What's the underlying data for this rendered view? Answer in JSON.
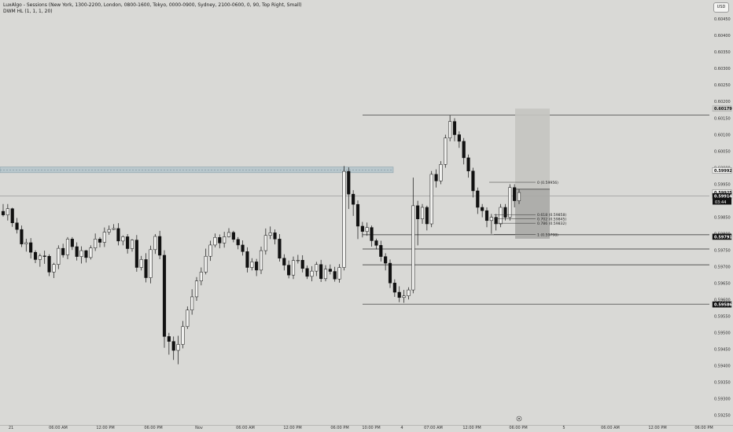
{
  "legend": {
    "line1": "LuxAlgo - Sessions (New York, 1300-2200, London, 0800-1600, Tokyo, 0000-0900, Sydney, 2100-0600, 0, 90, Top Right, Small)",
    "line2": "DWM HL (1, 1, 1, 20)"
  },
  "currency": "USD",
  "countdown": "03:44",
  "chart_data": {
    "type": "candlestick",
    "title": "",
    "y_range": [
      0.5925,
      0.6047
    ],
    "y_ticks": [
      "0.60450",
      "0.60400",
      "0.60350",
      "0.60300",
      "0.60250",
      "0.60200",
      "0.60150",
      "0.60100",
      "0.60050",
      "0.60000",
      "0.59950",
      "0.59900",
      "0.59850",
      "0.59800",
      "0.59750",
      "0.59700",
      "0.59650",
      "0.59600",
      "0.59550",
      "0.59500",
      "0.59450",
      "0.59400",
      "0.59350",
      "0.59300",
      "0.59250"
    ],
    "x_ticks": [
      "21",
      "06:00 AM",
      "12:00 PM",
      "06:00 PM",
      "Nov",
      "06:00 AM",
      "12:00 PM",
      "06:00 PM",
      "10:00 PM",
      "4",
      "07:00 AM",
      "12:00 PM",
      "06:00 PM",
      "5",
      "06:00 AM",
      "12:00 PM",
      "06:00 PM"
    ],
    "price_levels": [
      {
        "label": "0.60179",
        "value": 0.60179,
        "style": "badge-grey"
      },
      {
        "label": "0.59992",
        "value": 0.59992,
        "style": "badge-white"
      },
      {
        "label": "0.59925",
        "value": 0.59925,
        "style": "badge-white"
      },
      {
        "label": "0.59914",
        "value": 0.59914,
        "style": "badge-black"
      },
      {
        "label": "0.59791",
        "value": 0.59791,
        "style": "badge-black"
      },
      {
        "label": "0.59586",
        "value": 0.59586,
        "style": "badge-black"
      }
    ],
    "fib_levels": [
      {
        "label": "0 (0.59956)",
        "value": 0.59956
      },
      {
        "label": "0.618 (0.59858)",
        "value": 0.59858
      },
      {
        "label": "0.702 (0.59845)",
        "value": 0.59845
      },
      {
        "label": "0.786 (0.59832)",
        "value": 0.59832
      },
      {
        "label": "1 (0.59798)",
        "value": 0.59798
      }
    ],
    "horizontal_lines": [
      0.60159,
      0.59797,
      0.59754,
      0.59706,
      0.59587
    ],
    "resistance_zone": [
      0.59985,
      0.60002
    ],
    "reference_line": 0.59914,
    "position_box": {
      "entry": 0.59935,
      "target": 0.60179,
      "stop": 0.59785
    },
    "candles": [
      [
        0.59868,
        0.59857,
        0.59852,
        0.5989
      ],
      [
        0.59857,
        0.59876,
        0.5984,
        0.5989
      ],
      [
        0.59876,
        0.59833,
        0.59821,
        0.59879
      ],
      [
        0.59833,
        0.59813,
        0.59801,
        0.59848
      ],
      [
        0.59813,
        0.59769,
        0.5976,
        0.59825
      ],
      [
        0.59769,
        0.59773,
        0.59746,
        0.59785
      ],
      [
        0.59773,
        0.59744,
        0.59725,
        0.59787
      ],
      [
        0.59744,
        0.59722,
        0.59711,
        0.5975
      ],
      [
        0.59722,
        0.59733,
        0.597,
        0.5974
      ],
      [
        0.59733,
        0.59732,
        0.59709,
        0.59749
      ],
      [
        0.59732,
        0.59684,
        0.59672,
        0.59738
      ],
      [
        0.59684,
        0.59707,
        0.59666,
        0.59712
      ],
      [
        0.59707,
        0.59756,
        0.59693,
        0.59765
      ],
      [
        0.59756,
        0.59736,
        0.59728,
        0.5977
      ],
      [
        0.59736,
        0.59784,
        0.59723,
        0.5979
      ],
      [
        0.59784,
        0.59761,
        0.59751,
        0.5979
      ],
      [
        0.59761,
        0.59731,
        0.59719,
        0.59774
      ],
      [
        0.59731,
        0.59749,
        0.5971,
        0.59762
      ],
      [
        0.59749,
        0.59728,
        0.59713,
        0.59751
      ],
      [
        0.59728,
        0.59757,
        0.59722,
        0.59765
      ],
      [
        0.59757,
        0.59784,
        0.59748,
        0.59801
      ],
      [
        0.59784,
        0.59774,
        0.59759,
        0.5979
      ],
      [
        0.59774,
        0.59805,
        0.5976,
        0.59819
      ],
      [
        0.59805,
        0.59813,
        0.59797,
        0.59825
      ],
      [
        0.59813,
        0.59816,
        0.59811,
        0.59829
      ],
      [
        0.59816,
        0.59778,
        0.59765,
        0.59832
      ],
      [
        0.59778,
        0.59791,
        0.59765,
        0.59795
      ],
      [
        0.59791,
        0.59755,
        0.5974,
        0.59799
      ],
      [
        0.59755,
        0.59781,
        0.59746,
        0.59784
      ],
      [
        0.59781,
        0.59698,
        0.59685,
        0.59796
      ],
      [
        0.59698,
        0.59722,
        0.59689,
        0.59733
      ],
      [
        0.59722,
        0.59667,
        0.59653,
        0.59741
      ],
      [
        0.59667,
        0.59752,
        0.5965,
        0.59764
      ],
      [
        0.59752,
        0.59792,
        0.59739,
        0.59799
      ],
      [
        0.59792,
        0.59735,
        0.59723,
        0.59809
      ],
      [
        0.59735,
        0.59489,
        0.59455,
        0.5975
      ],
      [
        0.59489,
        0.59474,
        0.59434,
        0.595
      ],
      [
        0.59474,
        0.59447,
        0.59418,
        0.59489
      ],
      [
        0.59447,
        0.59465,
        0.59405,
        0.59491
      ],
      [
        0.59465,
        0.59519,
        0.59453,
        0.59536
      ],
      [
        0.59519,
        0.59569,
        0.59512,
        0.5958
      ],
      [
        0.59569,
        0.59609,
        0.59555,
        0.59632
      ],
      [
        0.59609,
        0.59657,
        0.59597,
        0.59669
      ],
      [
        0.59657,
        0.59684,
        0.59644,
        0.59698
      ],
      [
        0.59684,
        0.59732,
        0.59677,
        0.59755
      ],
      [
        0.59732,
        0.59766,
        0.59718,
        0.59779
      ],
      [
        0.59766,
        0.59789,
        0.59759,
        0.59801
      ],
      [
        0.59789,
        0.59772,
        0.59756,
        0.59798
      ],
      [
        0.59772,
        0.59791,
        0.59758,
        0.59806
      ],
      [
        0.59791,
        0.59804,
        0.59789,
        0.59817
      ],
      [
        0.59804,
        0.59783,
        0.59774,
        0.59809
      ],
      [
        0.59783,
        0.59766,
        0.59753,
        0.5979
      ],
      [
        0.59766,
        0.59746,
        0.59734,
        0.5978
      ],
      [
        0.59746,
        0.59698,
        0.59683,
        0.59759
      ],
      [
        0.59698,
        0.59715,
        0.59689,
        0.59726
      ],
      [
        0.59715,
        0.5969,
        0.59672,
        0.59724
      ],
      [
        0.5969,
        0.59749,
        0.59678,
        0.59761
      ],
      [
        0.59749,
        0.59795,
        0.59737,
        0.59816
      ],
      [
        0.59795,
        0.59803,
        0.59784,
        0.59822
      ],
      [
        0.59803,
        0.59784,
        0.59768,
        0.59813
      ],
      [
        0.59784,
        0.59726,
        0.59716,
        0.59799
      ],
      [
        0.59726,
        0.59705,
        0.59689,
        0.59738
      ],
      [
        0.59705,
        0.59675,
        0.59665,
        0.59719
      ],
      [
        0.59675,
        0.59719,
        0.59663,
        0.59731
      ],
      [
        0.59719,
        0.5972,
        0.5971,
        0.59736
      ],
      [
        0.5972,
        0.59695,
        0.59683,
        0.59735
      ],
      [
        0.59695,
        0.59671,
        0.59663,
        0.59704
      ],
      [
        0.59671,
        0.59687,
        0.59656,
        0.59702
      ],
      [
        0.59687,
        0.59707,
        0.59672,
        0.59715
      ],
      [
        0.59707,
        0.59664,
        0.59654,
        0.59721
      ],
      [
        0.59664,
        0.59693,
        0.59656,
        0.59705
      ],
      [
        0.59693,
        0.59686,
        0.59677,
        0.59707
      ],
      [
        0.59686,
        0.59663,
        0.59655,
        0.597
      ],
      [
        0.59663,
        0.59698,
        0.59652,
        0.59708
      ],
      [
        0.59698,
        0.59989,
        0.59689,
        0.60005
      ],
      [
        0.59989,
        0.5992,
        0.59875,
        0.60001
      ],
      [
        0.5992,
        0.59889,
        0.59854,
        0.59932
      ],
      [
        0.59889,
        0.59823,
        0.59784,
        0.59901
      ],
      [
        0.59823,
        0.59807,
        0.59789,
        0.59836
      ],
      [
        0.59807,
        0.59819,
        0.59794,
        0.59834
      ],
      [
        0.59819,
        0.59779,
        0.59761,
        0.59825
      ],
      [
        0.59779,
        0.59765,
        0.59753,
        0.59785
      ],
      [
        0.59765,
        0.59731,
        0.59716,
        0.59779
      ],
      [
        0.59731,
        0.59711,
        0.59689,
        0.59741
      ],
      [
        0.59711,
        0.59651,
        0.59636,
        0.59722
      ],
      [
        0.59651,
        0.59623,
        0.59609,
        0.59662
      ],
      [
        0.59623,
        0.59607,
        0.59593,
        0.59641
      ],
      [
        0.59607,
        0.59612,
        0.59591,
        0.5963
      ],
      [
        0.59612,
        0.5963,
        0.59601,
        0.59638
      ],
      [
        0.5963,
        0.59885,
        0.5962,
        0.5997
      ],
      [
        0.59885,
        0.59845,
        0.59765,
        0.599
      ],
      [
        0.59845,
        0.5988,
        0.5983,
        0.5989
      ],
      [
        0.5988,
        0.5983,
        0.5981,
        0.59885
      ],
      [
        0.5983,
        0.5998,
        0.5982,
        0.5999
      ],
      [
        0.5998,
        0.5996,
        0.5994,
        0.59995
      ],
      [
        0.5996,
        0.6001,
        0.5995,
        0.6002
      ],
      [
        0.6001,
        0.6009,
        0.6,
        0.601
      ],
      [
        0.6009,
        0.6014,
        0.6008,
        0.60159
      ],
      [
        0.6014,
        0.601,
        0.6008,
        0.6015
      ],
      [
        0.601,
        0.6008,
        0.6006,
        0.6011
      ],
      [
        0.6008,
        0.6003,
        0.6001,
        0.6009
      ],
      [
        0.6003,
        0.5999,
        0.5997,
        0.6004
      ],
      [
        0.5999,
        0.5993,
        0.5991,
        0.6
      ],
      [
        0.5993,
        0.5988,
        0.5986,
        0.5994
      ],
      [
        0.5988,
        0.5987,
        0.5985,
        0.5989
      ],
      [
        0.5987,
        0.5984,
        0.5982,
        0.5988
      ],
      [
        0.5984,
        0.5985,
        0.598,
        0.5986
      ],
      [
        0.5985,
        0.5983,
        0.5981,
        0.5986
      ],
      [
        0.5983,
        0.5988,
        0.5982,
        0.5989
      ],
      [
        0.5988,
        0.5985,
        0.5984,
        0.5989
      ],
      [
        0.5985,
        0.5994,
        0.5984,
        0.5995
      ],
      [
        0.5994,
        0.599,
        0.5988,
        0.5995
      ],
      [
        0.599,
        0.59925,
        0.5989,
        0.59935
      ]
    ]
  }
}
